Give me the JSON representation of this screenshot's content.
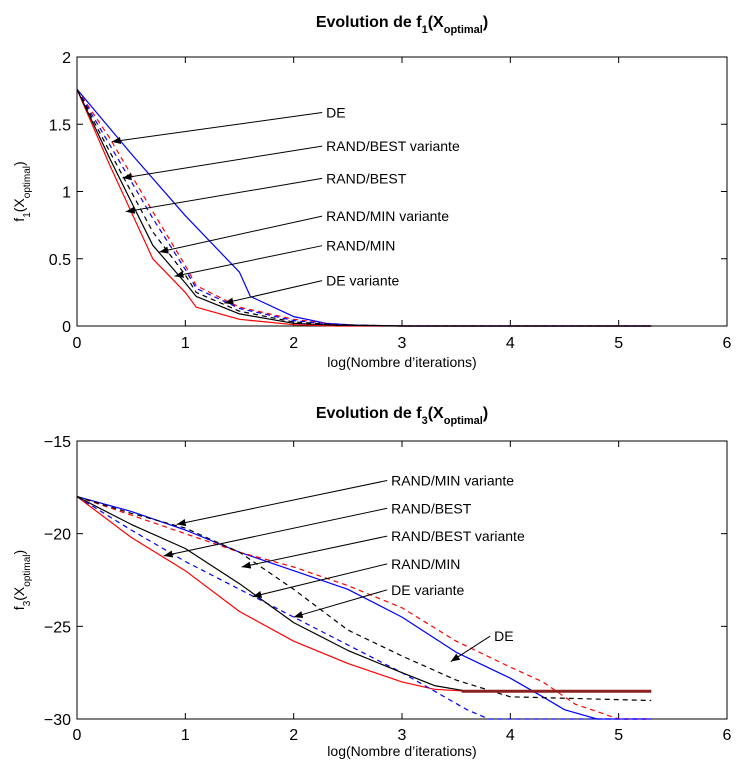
{
  "chart_data": [
    {
      "type": "line",
      "title": "Evolution de f",
      "title_sub": "1",
      "title_inner": "X",
      "title_inner_sub": "optimal",
      "xlabel": "log(Nombre d’iterations)",
      "ylabel": "f",
      "ylabel_sub": "1",
      "ylabel_inner": "X",
      "ylabel_inner_sub": "optimal",
      "xlim": [
        0,
        6
      ],
      "ylim": [
        0,
        2
      ],
      "xticks": [
        "0",
        "1",
        "2",
        "3",
        "4",
        "5",
        "6"
      ],
      "yticks": [
        "0",
        "0.5",
        "1",
        "1.5",
        "2"
      ],
      "grid": false,
      "series": [
        {
          "name": "DE",
          "color": "#0000ff",
          "style": "solid",
          "x": [
            0,
            0.5,
            1.0,
            1.5,
            1.6,
            2.0,
            2.3,
            2.6,
            3.0,
            4.0,
            5.3
          ],
          "y": [
            1.76,
            1.28,
            0.82,
            0.4,
            0.22,
            0.07,
            0.02,
            0.005,
            0.0,
            0.0,
            0.0
          ]
        },
        {
          "name": "DE variante",
          "color": "#ff0000",
          "style": "solid",
          "x": [
            0,
            0.3,
            0.7,
            1.0,
            1.1,
            1.5,
            2.0,
            2.4,
            3.0,
            5.3
          ],
          "y": [
            1.76,
            1.2,
            0.5,
            0.25,
            0.14,
            0.05,
            0.01,
            0.0,
            0.0,
            0.0
          ]
        },
        {
          "name": "RAND/BEST variante",
          "color": "#ff0000",
          "style": "dashed",
          "x": [
            0,
            0.3,
            0.7,
            1.0,
            1.1,
            1.5,
            2.0,
            2.4,
            3.0,
            5.3
          ],
          "y": [
            1.76,
            1.4,
            0.85,
            0.45,
            0.3,
            0.14,
            0.05,
            0.01,
            0.0,
            0.0
          ]
        },
        {
          "name": "RAND/BEST",
          "color": "#0000ff",
          "style": "dashed",
          "x": [
            0,
            0.3,
            0.7,
            1.0,
            1.1,
            1.5,
            2.0,
            2.4,
            3.0,
            5.3
          ],
          "y": [
            1.76,
            1.35,
            0.8,
            0.42,
            0.28,
            0.13,
            0.04,
            0.01,
            0.0,
            0.0
          ]
        },
        {
          "name": "RAND/MIN variante",
          "color": "#000000",
          "style": "dashed",
          "x": [
            0,
            0.3,
            0.7,
            1.0,
            1.1,
            1.5,
            2.0,
            2.4,
            3.0,
            5.3
          ],
          "y": [
            1.76,
            1.3,
            0.7,
            0.38,
            0.25,
            0.11,
            0.03,
            0.01,
            0.0,
            0.0
          ]
        },
        {
          "name": "RAND/MIN",
          "color": "#000000",
          "style": "solid",
          "x": [
            0,
            0.3,
            0.7,
            1.0,
            1.1,
            1.5,
            2.0,
            2.4,
            3.0,
            5.3
          ],
          "y": [
            1.76,
            1.25,
            0.6,
            0.32,
            0.22,
            0.09,
            0.02,
            0.005,
            0.0,
            0.0
          ]
        }
      ],
      "annotations": [
        {
          "text": "DE",
          "text_at": [
            2.3,
            1.55
          ],
          "arrow_to": [
            0.32,
            1.37
          ]
        },
        {
          "text": "RAND/BEST variante",
          "text_at": [
            2.3,
            1.3
          ],
          "arrow_to": [
            0.42,
            1.1
          ]
        },
        {
          "text": "RAND/BEST",
          "text_at": [
            2.3,
            1.06
          ],
          "arrow_to": [
            0.45,
            0.85
          ]
        },
        {
          "text": "RAND/MIN variante",
          "text_at": [
            2.3,
            0.78
          ],
          "arrow_to": [
            0.76,
            0.55
          ]
        },
        {
          "text": "RAND/MIN",
          "text_at": [
            2.3,
            0.56
          ],
          "arrow_to": [
            0.9,
            0.37
          ]
        },
        {
          "text": "DE variante",
          "text_at": [
            2.3,
            0.3
          ],
          "arrow_to": [
            1.36,
            0.17
          ]
        }
      ]
    },
    {
      "type": "line",
      "title": "Evolution de f",
      "title_sub": "3",
      "title_inner": "X",
      "title_inner_sub": "optimal",
      "xlabel": "log(Nombre d’iterations)",
      "ylabel": "f",
      "ylabel_sub": "3",
      "ylabel_inner": "X",
      "ylabel_inner_sub": "optimal",
      "xlim": [
        0,
        6
      ],
      "ylim": [
        -30,
        -15
      ],
      "xticks": [
        "0",
        "1",
        "2",
        "3",
        "4",
        "5",
        "6"
      ],
      "yticks": [
        "−30",
        "−25",
        "−20",
        "−15"
      ],
      "grid": false,
      "series": [
        {
          "name": "DE",
          "color": "#0000ff",
          "style": "solid",
          "x": [
            0,
            0.5,
            1.0,
            1.5,
            2.0,
            2.5,
            3.0,
            3.5,
            4.0,
            4.3,
            4.5,
            4.8,
            5.3
          ],
          "y": [
            -18,
            -18.8,
            -19.8,
            -21.0,
            -22.0,
            -23.0,
            -24.5,
            -26.4,
            -27.8,
            -28.8,
            -29.5,
            -30.0,
            -30.0
          ]
        },
        {
          "name": "DE variante",
          "color": "#ff0000",
          "style": "solid",
          "x": [
            0,
            0.5,
            1.0,
            1.5,
            2.0,
            2.5,
            3.0,
            3.3,
            3.6,
            5.3
          ],
          "y": [
            -18,
            -20.2,
            -22.0,
            -24.2,
            -25.8,
            -27.0,
            -28.0,
            -28.4,
            -28.5,
            -28.5
          ]
        },
        {
          "name": "RAND/BEST variante",
          "color": "#ff0000",
          "style": "dashed",
          "x": [
            0,
            0.5,
            1.0,
            1.5,
            2.0,
            2.5,
            3.0,
            3.5,
            4.0,
            4.3,
            4.6,
            5.0,
            5.3
          ],
          "y": [
            -18,
            -19.0,
            -20.0,
            -21.0,
            -21.8,
            -22.8,
            -24.0,
            -25.8,
            -27.2,
            -28.0,
            -29.2,
            -30.0,
            -30.0
          ]
        },
        {
          "name": "RAND/BEST",
          "color": "#0000ff",
          "style": "dashed",
          "x": [
            0,
            0.5,
            1.0,
            1.5,
            2.0,
            2.5,
            3.0,
            3.3,
            3.6,
            3.8,
            5.3
          ],
          "y": [
            -18,
            -19.8,
            -21.5,
            -23.0,
            -24.5,
            -26.0,
            -27.5,
            -28.5,
            -29.5,
            -30.0,
            -30.0
          ]
        },
        {
          "name": "RAND/MIN variante",
          "color": "#000000",
          "style": "dashed",
          "x": [
            0,
            0.5,
            1.0,
            1.5,
            2.0,
            2.5,
            3.0,
            3.5,
            4.0,
            5.3
          ],
          "y": [
            -18,
            -18.9,
            -19.7,
            -21.0,
            -23.0,
            -25.2,
            -26.6,
            -27.9,
            -28.8,
            -29.0
          ]
        },
        {
          "name": "RAND/MIN",
          "color": "#000000",
          "style": "solid",
          "x": [
            0,
            0.5,
            1.0,
            1.5,
            2.0,
            2.5,
            3.0,
            3.3,
            3.6,
            5.3
          ],
          "y": [
            -18,
            -19.5,
            -20.8,
            -22.7,
            -24.8,
            -26.3,
            -27.5,
            -28.2,
            -28.5,
            -28.5
          ]
        },
        {
          "name": "",
          "color": "#8b2020",
          "style": "solid",
          "width": 3,
          "x": [
            3.55,
            5.3
          ],
          "y": [
            -28.5,
            -28.5
          ]
        }
      ],
      "annotations": [
        {
          "text": "RAND/MIN variante",
          "text_at": [
            2.9,
            -17.4
          ],
          "arrow_to": [
            0.92,
            -19.5
          ]
        },
        {
          "text": "RAND/BEST",
          "text_at": [
            2.9,
            -18.9
          ],
          "arrow_to": [
            0.8,
            -21.2
          ]
        },
        {
          "text": "RAND/BEST variante",
          "text_at": [
            2.9,
            -20.4
          ],
          "arrow_to": [
            1.52,
            -21.8
          ]
        },
        {
          "text": "RAND/MIN",
          "text_at": [
            2.9,
            -21.9
          ],
          "arrow_to": [
            1.62,
            -23.4
          ]
        },
        {
          "text": "DE variante",
          "text_at": [
            2.9,
            -23.3
          ],
          "arrow_to": [
            2.0,
            -24.5
          ]
        },
        {
          "text": "DE",
          "text_at": [
            3.85,
            -25.8
          ],
          "arrow_to": [
            3.45,
            -26.9
          ]
        }
      ]
    }
  ]
}
